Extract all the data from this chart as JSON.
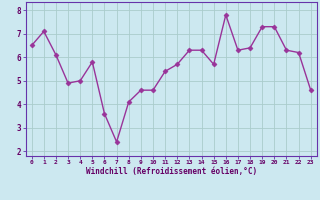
{
  "x": [
    0,
    1,
    2,
    3,
    4,
    5,
    6,
    7,
    8,
    9,
    10,
    11,
    12,
    13,
    14,
    15,
    16,
    17,
    18,
    19,
    20,
    21,
    22,
    23
  ],
  "y": [
    6.5,
    7.1,
    6.1,
    4.9,
    5.0,
    5.8,
    3.6,
    2.4,
    4.1,
    4.6,
    4.6,
    5.4,
    5.7,
    6.3,
    6.3,
    5.7,
    7.8,
    6.3,
    6.4,
    7.3,
    7.3,
    6.3,
    6.2,
    4.6
  ],
  "xlabel": "Windchill (Refroidissement éolien,°C)",
  "xlim": [
    -0.5,
    23.5
  ],
  "ylim": [
    1.8,
    8.35
  ],
  "yticks": [
    2,
    3,
    4,
    5,
    6,
    7,
    8
  ],
  "xticks": [
    0,
    1,
    2,
    3,
    4,
    5,
    6,
    7,
    8,
    9,
    10,
    11,
    12,
    13,
    14,
    15,
    16,
    17,
    18,
    19,
    20,
    21,
    22,
    23
  ],
  "line_color": "#993399",
  "marker": "D",
  "marker_size": 2.5,
  "bg_color": "#cce8f0",
  "grid_color": "#aacccc",
  "label_color": "#660066",
  "tick_label_color": "#660066",
  "line_width": 1.0,
  "spine_color": "#6633aa"
}
